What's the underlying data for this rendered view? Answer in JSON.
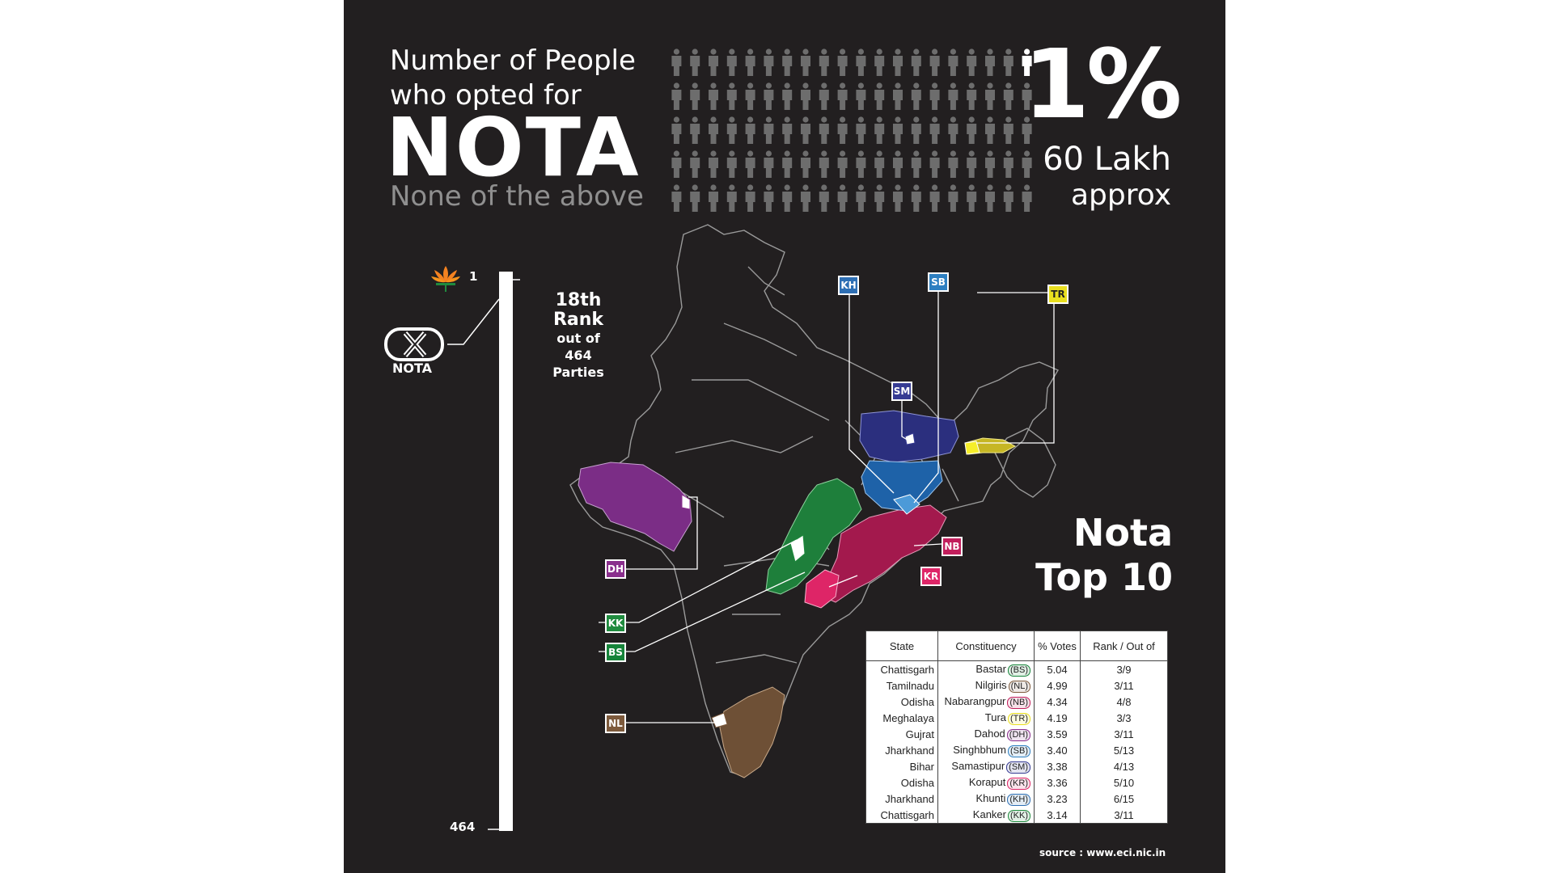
{
  "header": {
    "line1": "Number of People",
    "line2": "who opted for",
    "big": "NOTA",
    "subtitle": "None of the above"
  },
  "stat": {
    "percent": "1%",
    "count": "60 Lakh",
    "qualifier": "approx"
  },
  "people_grid": {
    "rows": 5,
    "cols": 20,
    "highlighted": 1,
    "highlight_color": "#ffffff",
    "base_color": "#6d6d6d"
  },
  "rank_scale": {
    "top_value": "1",
    "bottom_value": "464",
    "rank_line1": "18th",
    "rank_line2": "Rank",
    "rank_line3": "out of",
    "rank_line4": "464",
    "rank_line5": "Parties",
    "nota_caption": "NOTA",
    "nota_rank": 18,
    "total_parties": 464
  },
  "map_tags": [
    {
      "code": "KH",
      "color": "#2e6fb4"
    },
    {
      "code": "SB",
      "color": "#2d7fc1"
    },
    {
      "code": "TR",
      "color": "#e9df1f",
      "text_color": "#222"
    },
    {
      "code": "SM",
      "color": "#363b93"
    },
    {
      "code": "DH",
      "color": "#8a2f8d"
    },
    {
      "code": "NB",
      "color": "#c21e5c"
    },
    {
      "code": "KR",
      "color": "#de2567"
    },
    {
      "code": "KK",
      "color": "#1f8b3e"
    },
    {
      "code": "BS",
      "color": "#16843a"
    },
    {
      "code": "NL",
      "color": "#7d5a3c"
    }
  ],
  "top10": {
    "line1": "Nota",
    "line2": "Top 10"
  },
  "table": {
    "headers": [
      "State",
      "Constituency",
      "% Votes",
      "Rank / Out of"
    ],
    "rows": [
      {
        "state": "Chattisgarh",
        "constituency": "Bastar",
        "code": "(BS)",
        "color": "#16843a",
        "votes": "5.04",
        "rank": "3/9"
      },
      {
        "state": "Tamilnadu",
        "constituency": "Nilgiris",
        "code": "(NL)",
        "color": "#7d5a3c",
        "votes": "4.99",
        "rank": "3/11"
      },
      {
        "state": "Odisha",
        "constituency": "Nabarangpur",
        "code": "(NB)",
        "color": "#c21e5c",
        "votes": "4.34",
        "rank": "4/8"
      },
      {
        "state": "Meghalaya",
        "constituency": "Tura",
        "code": "(TR)",
        "color": "#e9df1f",
        "votes": "4.19",
        "rank": "3/3"
      },
      {
        "state": "Gujrat",
        "constituency": "Dahod",
        "code": "(DH)",
        "color": "#8a2f8d",
        "votes": "3.59",
        "rank": "3/11"
      },
      {
        "state": "Jharkhand",
        "constituency": "Singhbhum",
        "code": "(SB)",
        "color": "#2d7fc1",
        "votes": "3.40",
        "rank": "5/13"
      },
      {
        "state": "Bihar",
        "constituency": "Samastipur",
        "code": "(SM)",
        "color": "#363b93",
        "votes": "3.38",
        "rank": "4/13"
      },
      {
        "state": "Odisha",
        "constituency": "Koraput",
        "code": "(KR)",
        "color": "#de2567",
        "votes": "3.36",
        "rank": "5/10"
      },
      {
        "state": "Jharkhand",
        "constituency": "Khunti",
        "code": "(KH)",
        "color": "#2e6fb4",
        "votes": "3.23",
        "rank": "6/15"
      },
      {
        "state": "Chattisgarh",
        "constituency": "Kanker",
        "code": "(KK)",
        "color": "#1f8b3e",
        "votes": "3.14",
        "rank": "3/11"
      }
    ]
  },
  "source": "source : www.eci.nic.in"
}
